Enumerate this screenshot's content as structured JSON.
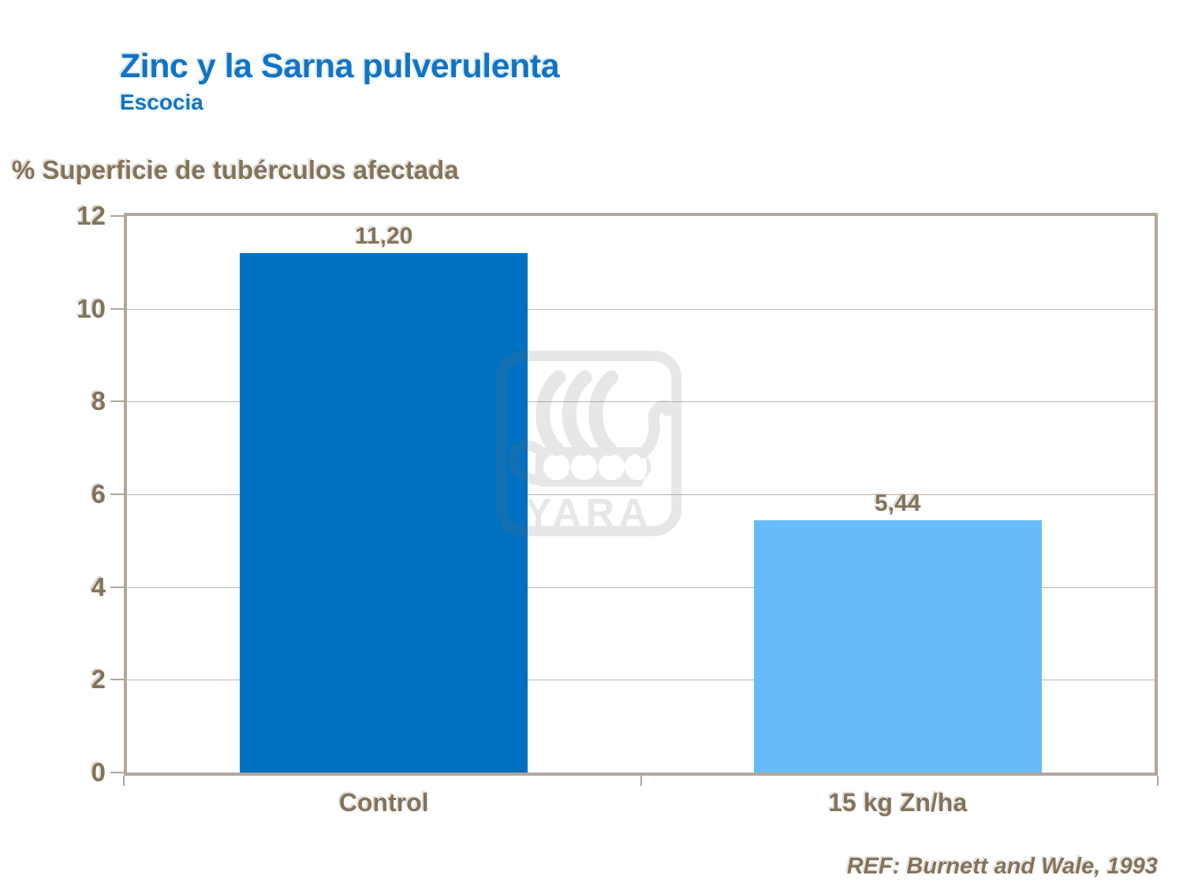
{
  "header": {
    "title": "Zinc y la Sarna pulverulenta",
    "subtitle": "Escocia"
  },
  "chart_data": {
    "type": "bar",
    "title": "Zinc y la Sarna pulverulenta",
    "subtitle": "Escocia",
    "ylabel": "% Superficie de tubérculos afectada",
    "categories": [
      "Control",
      "15 kg Zn/ha"
    ],
    "values": [
      11.2,
      5.44
    ],
    "value_labels": [
      "11,20",
      "5,44"
    ],
    "bar_colors": [
      "#0070C0",
      "#66BCFB"
    ],
    "ylim": [
      0,
      12
    ],
    "yticks": [
      0,
      2,
      4,
      6,
      8,
      10,
      12
    ],
    "grid": true,
    "legend_position": "none"
  },
  "footer": {
    "reference": "REF: Burnett and Wale, 1993"
  },
  "watermark": {
    "icon": "viking-ship-icon",
    "text": "YARA"
  },
  "colors": {
    "title_blue": "#1274C5",
    "text_brown": "#84735C",
    "axis_border": "#B1A79B",
    "gridline": "#BEB4A8",
    "bar_control": "#0070C0",
    "bar_zinc": "#66BCFB",
    "watermark_gray": "#6E6E6E"
  }
}
